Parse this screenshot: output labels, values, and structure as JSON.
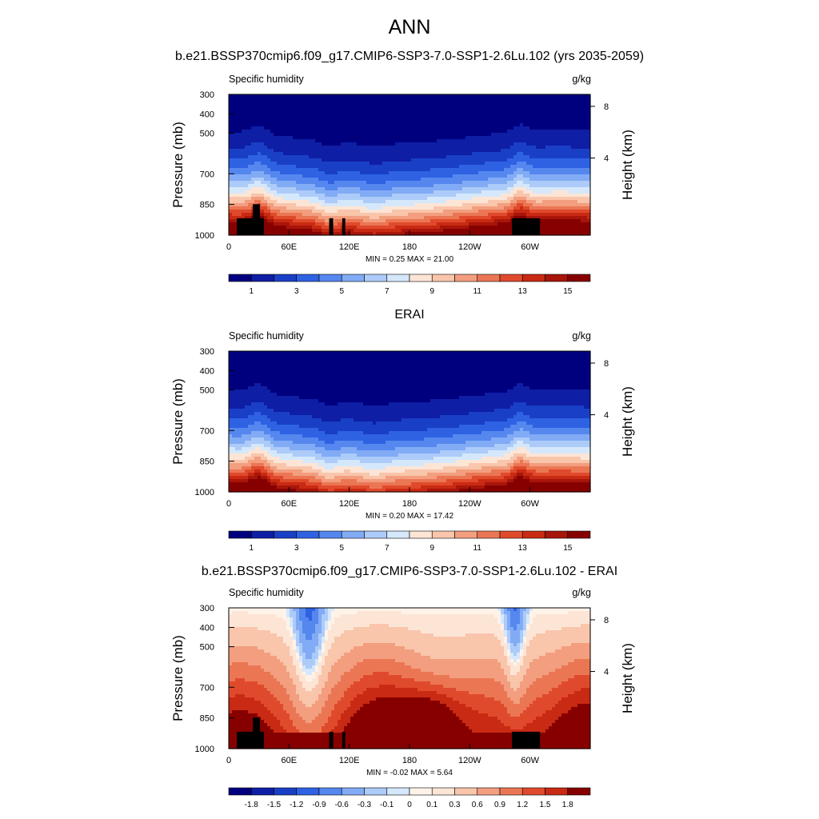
{
  "figure": {
    "title": "ANN"
  },
  "chart_data": [
    {
      "type": "heatmap",
      "title": "b.e21.BSSP370cmip6.f09_g17.CMIP6-SSP3-7.0-SSP1-2.6Lu.102 (yrs 2035-2059)",
      "left_label": "Specific humidity",
      "units": "g/kg",
      "ylabel": "Pressure (mb)",
      "ylabel_right": "Height (km)",
      "pressure_ticks": [
        300,
        400,
        500,
        700,
        850,
        1000
      ],
      "height_ticks": [
        8,
        4
      ],
      "x_ticks": [
        "0",
        "60E",
        "120E",
        "180",
        "120W",
        "60W"
      ],
      "stats": "MIN =   0.25  MAX =  21.00",
      "colorbar_labels": [
        "1",
        "3",
        "5",
        "7",
        "9",
        "11",
        "13",
        "15"
      ],
      "kind": "model"
    },
    {
      "type": "heatmap",
      "title": "ERAI",
      "left_label": "Specific humidity",
      "units": "g/kg",
      "ylabel": "Pressure (mb)",
      "ylabel_right": "Height (km)",
      "pressure_ticks": [
        300,
        400,
        500,
        700,
        850,
        1000
      ],
      "height_ticks": [
        8,
        4
      ],
      "x_ticks": [
        "0",
        "60E",
        "120E",
        "180",
        "120W",
        "60W"
      ],
      "stats": "MIN =   0.20  MAX =  17.42",
      "colorbar_labels": [
        "1",
        "3",
        "5",
        "7",
        "9",
        "11",
        "13",
        "15"
      ],
      "kind": "obs"
    },
    {
      "type": "heatmap",
      "title": "b.e21.BSSP370cmip6.f09_g17.CMIP6-SSP3-7.0-SSP1-2.6Lu.102 - ERAI",
      "left_label": "Specific humidity",
      "units": "g/kg",
      "ylabel": "Pressure (mb)",
      "ylabel_right": "Height (km)",
      "pressure_ticks": [
        300,
        400,
        500,
        700,
        850,
        1000
      ],
      "height_ticks": [
        8,
        4
      ],
      "x_ticks": [
        "0",
        "60E",
        "120E",
        "180",
        "120W",
        "60W"
      ],
      "stats": "MIN =  -0.02  MAX =   5.64",
      "colorbar_labels": [
        "-1.8",
        "-1.5",
        "-1.2",
        "-0.9",
        "-0.6",
        "-0.3",
        "-0.1",
        "0",
        "0.1",
        "0.3",
        "0.6",
        "0.9",
        "1.2",
        "1.5",
        "1.8"
      ],
      "kind": "diff"
    }
  ],
  "colors": {
    "seq_palette": [
      "#00007f",
      "#0e1ea5",
      "#1a3fc7",
      "#2e62e3",
      "#5587ef",
      "#82abf5",
      "#adcbf9",
      "#d5e8fb",
      "#fde5d6",
      "#f9c5ab",
      "#f29e7f",
      "#eb7654",
      "#e04a2c",
      "#c92a13",
      "#a8150a",
      "#870000"
    ],
    "diff_palette": [
      "#00007f",
      "#0e1ea5",
      "#1a3fc7",
      "#2e62e3",
      "#5587ef",
      "#82abf5",
      "#adcbf9",
      "#d5e8fb",
      "#fff3e9",
      "#fde5d6",
      "#f9c5ab",
      "#f29e7f",
      "#eb7654",
      "#e04a2c",
      "#c92a13",
      "#870000"
    ],
    "topography": "#000000"
  }
}
